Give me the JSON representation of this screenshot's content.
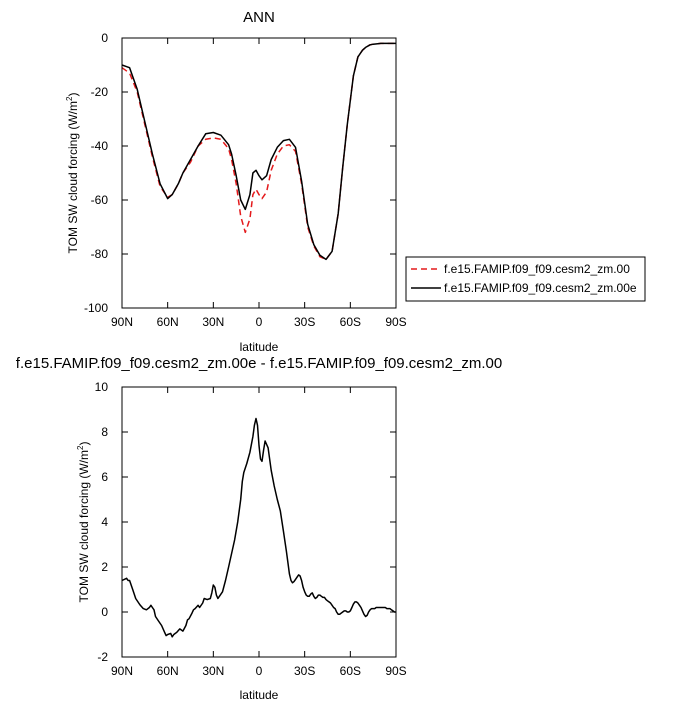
{
  "chart_data": [
    {
      "type": "line",
      "title": "ANN",
      "xlabel": "latitude",
      "ylabel": "TOM SW cloud forcing (W/m2)",
      "ylabel_text": "TOM SW cloud forcing (W/m",
      "ylabel_sup": "2",
      "ylabel_close": ")",
      "xlim": [
        -90,
        90
      ],
      "ylim": [
        -100,
        0
      ],
      "x_ticks": [
        -90,
        -60,
        -30,
        0,
        30,
        60,
        90
      ],
      "x_tick_labels": [
        "90N",
        "60N",
        "30N",
        "0",
        "30S",
        "60S",
        "90S"
      ],
      "y_ticks": [
        -100,
        -80,
        -60,
        -40,
        -20,
        0
      ],
      "y_tick_labels": [
        "-100",
        "-80",
        "-60",
        "-40",
        "-20",
        "0"
      ],
      "legend_position": "right",
      "series": [
        {
          "name": "f.e15.FAMIP.f09_f09.cesm2_zm.00",
          "color": "#e41a1c",
          "dash": "dashed",
          "x": [
            -90,
            -85,
            -80,
            -75,
            -70,
            -65,
            -60,
            -57,
            -53,
            -50,
            -45,
            -40,
            -35,
            -30,
            -25,
            -20,
            -18,
            -15,
            -12,
            -9,
            -6,
            -4,
            -2,
            0,
            2,
            5,
            8,
            12,
            16,
            20,
            24,
            28,
            32,
            36,
            40,
            44,
            48,
            52,
            55,
            58,
            62,
            65,
            68,
            70,
            73,
            75,
            78,
            80,
            85,
            90
          ],
          "y": [
            -11,
            -13,
            -20,
            -32,
            -44,
            -55,
            -59,
            -58,
            -54,
            -50,
            -46,
            -40,
            -37.5,
            -37,
            -37.5,
            -41,
            -45,
            -54,
            -66,
            -72,
            -67,
            -58,
            -56,
            -58,
            -59.5,
            -57,
            -49,
            -43,
            -40,
            -39.5,
            -42,
            -54,
            -70,
            -77,
            -81,
            -82,
            -79,
            -65,
            -48,
            -32,
            -14,
            -7,
            -4.5,
            -3.5,
            -2.5,
            -2.3,
            -2.1,
            -2,
            -2,
            -2
          ]
        },
        {
          "name": "f.e15.FAMIP.f09_f09.cesm2_zm.00e",
          "color": "#000000",
          "dash": "solid",
          "x": [
            -90,
            -85,
            -80,
            -75,
            -70,
            -65,
            -60,
            -57,
            -53,
            -50,
            -45,
            -40,
            -35,
            -30,
            -25,
            -20,
            -18,
            -15,
            -12,
            -9,
            -6,
            -4,
            -2,
            0,
            2,
            5,
            8,
            12,
            16,
            20,
            24,
            28,
            32,
            36,
            40,
            44,
            48,
            52,
            55,
            58,
            62,
            65,
            68,
            70,
            73,
            75,
            78,
            80,
            85,
            90
          ],
          "y": [
            -10,
            -11,
            -19,
            -31,
            -43,
            -54,
            -59.5,
            -58,
            -54,
            -50,
            -45,
            -40,
            -35.5,
            -35,
            -36,
            -39.5,
            -43,
            -51,
            -60,
            -63.5,
            -58,
            -50,
            -49,
            -51,
            -52.5,
            -51,
            -45,
            -40.5,
            -38,
            -37.5,
            -40.5,
            -53,
            -69,
            -76.5,
            -80.5,
            -82,
            -79,
            -65,
            -48,
            -32,
            -14,
            -7,
            -4.5,
            -3.5,
            -2.5,
            -2.3,
            -2.1,
            -2,
            -2,
            -2
          ]
        }
      ]
    },
    {
      "type": "line",
      "title": "f.e15.FAMIP.f09_f09.cesm2_zm.00e - f.e15.FAMIP.f09_f09.cesm2_zm.00",
      "xlabel": "latitude",
      "ylabel": "TOM SW cloud forcing (W/m2)",
      "ylabel_text": "TOM SW cloud forcing (W/m",
      "ylabel_sup": "2",
      "ylabel_close": ")",
      "xlim": [
        -90,
        90
      ],
      "ylim": [
        -2,
        10
      ],
      "x_ticks": [
        -90,
        -60,
        -30,
        0,
        30,
        60,
        90
      ],
      "x_tick_labels": [
        "90N",
        "60N",
        "30N",
        "0",
        "30S",
        "60S",
        "90S"
      ],
      "y_ticks": [
        -2,
        0,
        2,
        4,
        6,
        8,
        10
      ],
      "y_tick_labels": [
        "-2",
        "0",
        "2",
        "4",
        "6",
        "8",
        "10"
      ],
      "series": [
        {
          "color": "#000000",
          "dash": "solid",
          "x": [
            -90,
            -87,
            -86,
            -85,
            -83,
            -81,
            -79,
            -78,
            -76,
            -74,
            -72,
            -71,
            -70,
            -69,
            -68,
            -66,
            -64,
            -62,
            -61,
            -60,
            -58,
            -57,
            -56,
            -55,
            -54,
            -52,
            -50,
            -48,
            -47,
            -46,
            -44,
            -43,
            -42,
            -40,
            -39,
            -37,
            -36,
            -34,
            -32,
            -31,
            -30,
            -29,
            -28,
            -27,
            -26,
            -24,
            -22,
            -20,
            -18,
            -16,
            -14,
            -12,
            -11,
            -10,
            -8,
            -6,
            -4,
            -3,
            -2,
            -1,
            0,
            1,
            2,
            3,
            4,
            6,
            8,
            10,
            12,
            14,
            16,
            18,
            19,
            20,
            21,
            22,
            23,
            24,
            25,
            26,
            27,
            28,
            29,
            30,
            31,
            32,
            33,
            34,
            35,
            36,
            37,
            38,
            39,
            40,
            41,
            42,
            43,
            44,
            45,
            46,
            47,
            48,
            49,
            50,
            51,
            52,
            53,
            54,
            55,
            56,
            57,
            58,
            59,
            60,
            61,
            62,
            63,
            64,
            65,
            66,
            67,
            68,
            69,
            70,
            71,
            72,
            73,
            74,
            75,
            76,
            77,
            78,
            79,
            80,
            81,
            82,
            83,
            84,
            85,
            86,
            87,
            88,
            89,
            90
          ],
          "y": [
            1.4,
            1.5,
            1.4,
            1.4,
            1.0,
            0.6,
            0.4,
            0.3,
            0.15,
            0.1,
            0.2,
            0.3,
            0.2,
            0.1,
            -0.2,
            -0.4,
            -0.6,
            -0.9,
            -1.05,
            -1.0,
            -0.95,
            -1.1,
            -1.0,
            -0.95,
            -0.9,
            -0.75,
            -0.85,
            -0.6,
            -0.35,
            -0.3,
            -0.05,
            0.1,
            0.15,
            0.3,
            0.2,
            0.4,
            0.6,
            0.55,
            0.6,
            0.85,
            1.2,
            1.1,
            0.75,
            0.6,
            0.7,
            0.9,
            1.4,
            2.0,
            2.6,
            3.2,
            4.0,
            5.0,
            5.8,
            6.2,
            6.6,
            7.1,
            7.8,
            8.3,
            8.6,
            8.3,
            7.4,
            6.8,
            6.7,
            7.2,
            7.6,
            7.3,
            6.3,
            5.6,
            5.0,
            4.5,
            3.6,
            2.7,
            2.2,
            1.7,
            1.4,
            1.3,
            1.35,
            1.45,
            1.55,
            1.65,
            1.6,
            1.4,
            1.1,
            0.9,
            0.75,
            0.7,
            0.7,
            0.8,
            0.85,
            0.7,
            0.6,
            0.65,
            0.75,
            0.75,
            0.7,
            0.65,
            0.65,
            0.55,
            0.5,
            0.45,
            0.4,
            0.3,
            0.2,
            0.15,
            0.0,
            -0.1,
            -0.1,
            -0.05,
            0.0,
            0.05,
            0.05,
            0.0,
            0.0,
            0.05,
            0.2,
            0.35,
            0.45,
            0.45,
            0.4,
            0.3,
            0.2,
            0.05,
            -0.1,
            -0.2,
            -0.15,
            0.0,
            0.1,
            0.15,
            0.15,
            0.15,
            0.2,
            0.2,
            0.2,
            0.2,
            0.2,
            0.2,
            0.2,
            0.15,
            0.15,
            0.15,
            0.1,
            0.05,
            0.0,
            0.0
          ]
        }
      ]
    }
  ]
}
